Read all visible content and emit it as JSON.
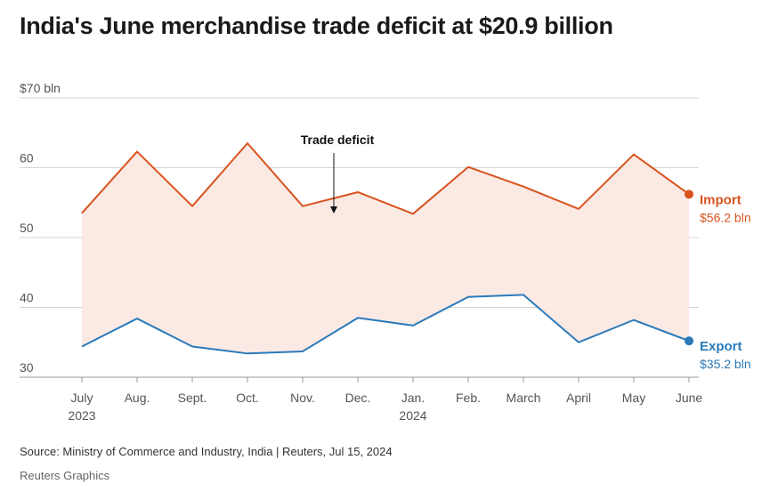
{
  "header": {
    "title": "India's June merchandise trade deficit at $20.9 billion"
  },
  "chart_data": {
    "type": "line",
    "title": "India's June merchandise trade deficit at $20.9 billion",
    "ylabel": "$ bln",
    "ylim": [
      30,
      70
    ],
    "yticks": [
      30,
      40,
      50,
      60,
      70
    ],
    "ytick_labels": [
      "30",
      "40",
      "50",
      "60",
      "$70 bln"
    ],
    "grid": true,
    "categories": [
      "July",
      "Aug.",
      "Sept.",
      "Oct.",
      "Nov.",
      "Dec.",
      "Jan.",
      "Feb.",
      "March",
      "April",
      "May",
      "June"
    ],
    "year_labels": [
      {
        "category": "July",
        "year": "2023"
      },
      {
        "category": "Jan.",
        "year": "2024"
      }
    ],
    "series": [
      {
        "name": "Import",
        "color": "#d9531e",
        "values": [
          53.5,
          62.3,
          54.5,
          63.5,
          54.5,
          56.5,
          53.4,
          60.1,
          57.3,
          54.1,
          61.9,
          56.2
        ],
        "end_label": "$56.2 bln"
      },
      {
        "name": "Export",
        "color": "#2a7ab9",
        "values": [
          34.4,
          38.4,
          34.4,
          33.4,
          33.7,
          38.5,
          37.4,
          41.5,
          41.8,
          35.0,
          38.2,
          35.2
        ],
        "end_label": "$35.2 bln"
      }
    ],
    "fill_between": {
      "label": "Trade deficit",
      "color": "#fbe9e4"
    },
    "annotations": [
      {
        "text": "Trade deficit",
        "category": "Dec.",
        "arrow": "down"
      }
    ]
  },
  "footer": {
    "source": "Source: Ministry of Commerce and Industry, India | Reuters, Jul 15, 2024",
    "credit": "Reuters Graphics"
  }
}
